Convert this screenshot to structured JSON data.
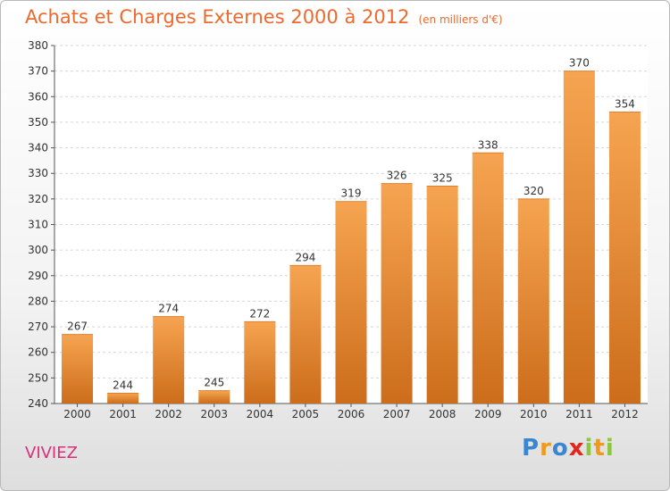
{
  "header": {
    "title": "Achats et Charges Externes 2000 à 2012",
    "subtitle": "(en milliers d'€)"
  },
  "footer": {
    "place": "VIVIEZ",
    "logo": "Proxiti"
  },
  "colors": {
    "bar_top": "#f6a451",
    "bar_bottom": "#cc6d1b",
    "title": "#ec6a2e",
    "place": "#d9307a"
  },
  "chart_data": {
    "type": "bar",
    "title": "Achats et Charges Externes 2000 à 2012",
    "subtitle": "(en milliers d'€)",
    "categories": [
      "2000",
      "2001",
      "2002",
      "2003",
      "2004",
      "2005",
      "2006",
      "2007",
      "2008",
      "2009",
      "2010",
      "2011",
      "2012"
    ],
    "values": [
      267,
      244,
      274,
      245,
      272,
      294,
      319,
      326,
      325,
      338,
      320,
      370,
      354
    ],
    "ylim": [
      240,
      380
    ],
    "yticks": [
      240,
      250,
      260,
      270,
      280,
      290,
      300,
      310,
      320,
      330,
      340,
      350,
      360,
      370,
      380
    ],
    "grid": true,
    "legend": "none"
  }
}
